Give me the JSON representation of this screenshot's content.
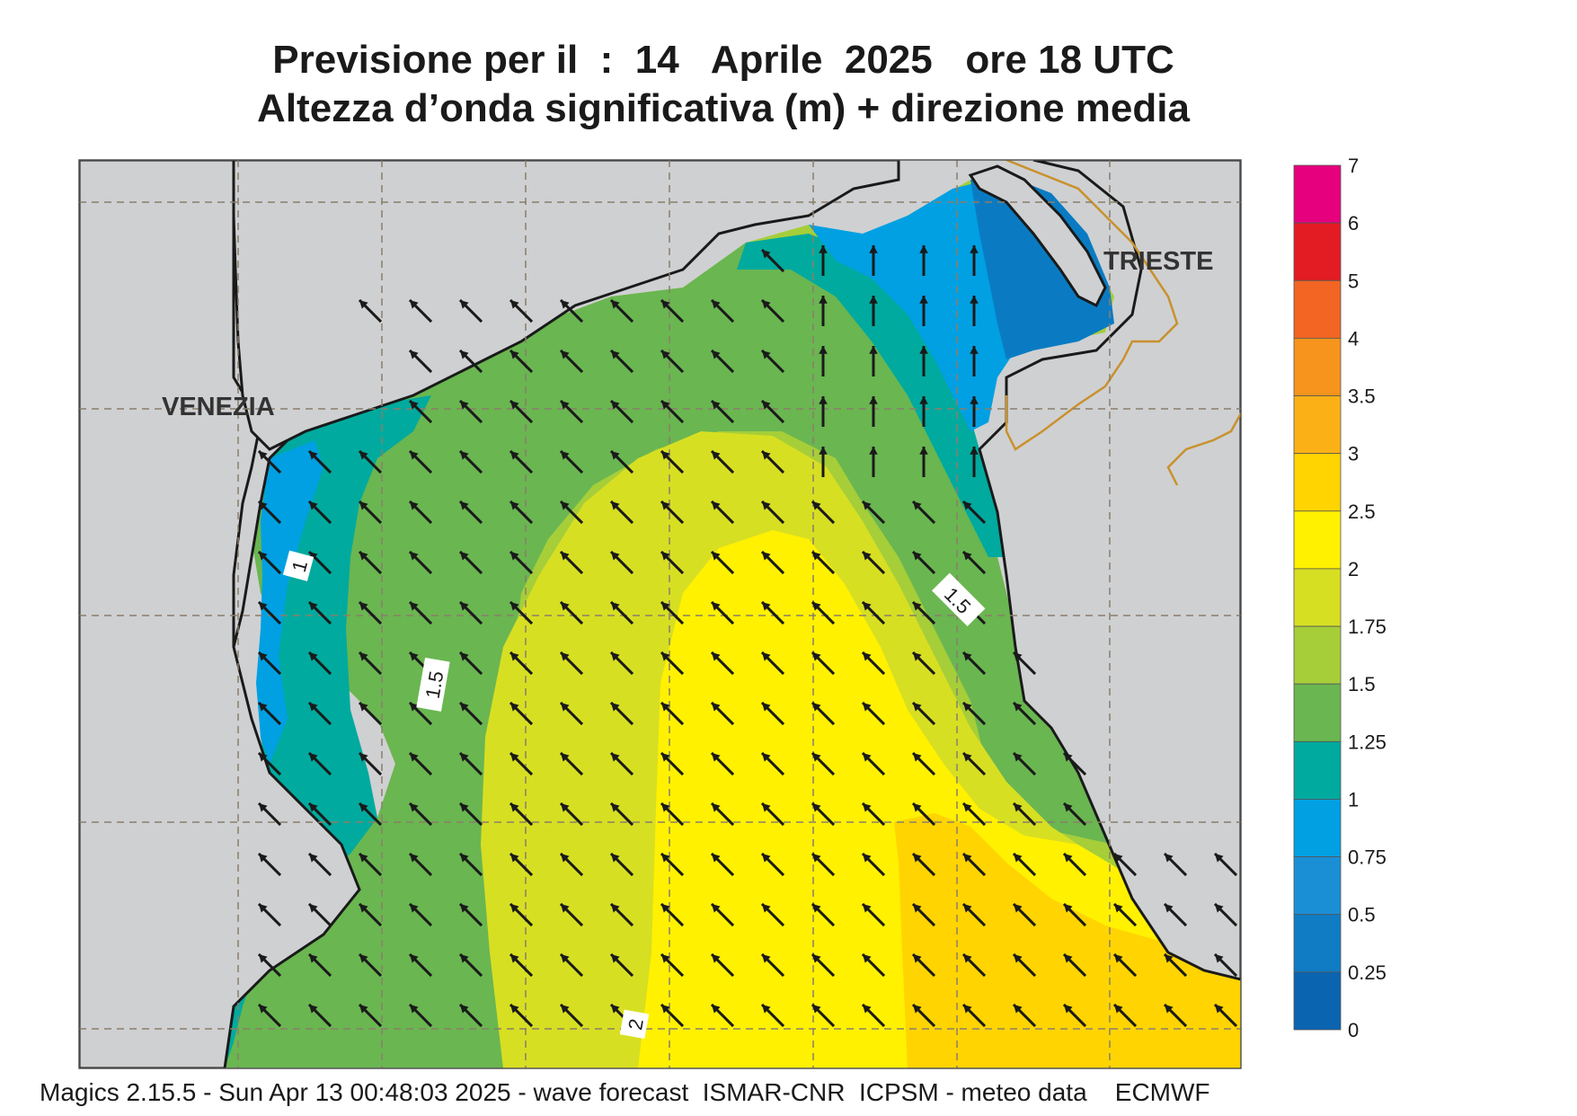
{
  "title": {
    "line1": "Previsione per il  :  14   Aprile  2025   ore 18 UTC",
    "line2": "Altezza d’onda significativa (m) + direzione media"
  },
  "map": {
    "labels": {
      "venezia": "VENEZIA",
      "trieste": "TRIESTE"
    },
    "contour_labels": [
      "1",
      "1.5",
      "1.5",
      "2"
    ],
    "colors": {
      "land": "#cfd0d2",
      "coast": "#1a1a1a",
      "border": "#c9912d",
      "grid": "#8a7e6a",
      "arrow": "#1a1a1a"
    }
  },
  "legend": {
    "items": [
      {
        "label": "7",
        "color": "#e6007e"
      },
      {
        "label": "6",
        "color": "#e31b23"
      },
      {
        "label": "5",
        "color": "#f26522"
      },
      {
        "label": "4",
        "color": "#f7941d"
      },
      {
        "label": "3.5",
        "color": "#fbb116"
      },
      {
        "label": "3",
        "color": "#ffd400"
      },
      {
        "label": "2.5",
        "color": "#fff100"
      },
      {
        "label": "2",
        "color": "#d7df23"
      },
      {
        "label": "1.75",
        "color": "#a6ce39"
      },
      {
        "label": "1.5",
        "color": "#6ab651"
      },
      {
        "label": "1.25",
        "color": "#00aa9e"
      },
      {
        "label": "1",
        "color": "#00a0e2"
      },
      {
        "label": "0.75",
        "color": "#1b8fd6"
      },
      {
        "label": "0.5",
        "color": "#0f7cc4"
      },
      {
        "label": "0.25",
        "color": "#0a64b0"
      },
      {
        "label": "0",
        "color": null
      }
    ]
  },
  "footer": {
    "text": "Magics 2.15.5 - Sun Apr 13 00:48:03 2025 - wave forecast  ISMAR-CNR  ICPSM - meteo data    ECMWF"
  }
}
